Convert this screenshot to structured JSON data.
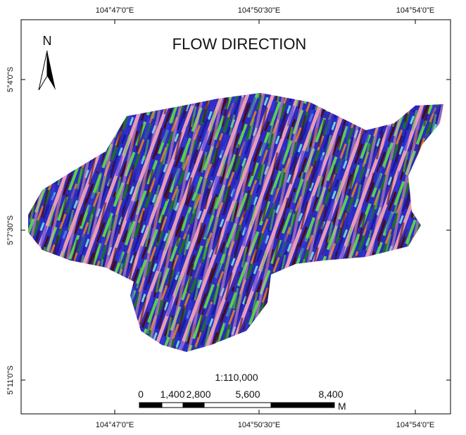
{
  "title": "FLOW DIRECTION",
  "north": "N",
  "scale": "1:110,000",
  "scale_bar": {
    "labels": [
      "0",
      "1,400",
      "2,800",
      "5,600",
      "8,400"
    ],
    "unit": "M"
  },
  "graticule": {
    "longitudes": [
      "104°47'0\"E",
      "104°50'30\"E",
      "104°54'0\"E"
    ],
    "latitudes": [
      "5°4'0\"S",
      "5°7'30\"S",
      "5°11'0\"S"
    ]
  }
}
